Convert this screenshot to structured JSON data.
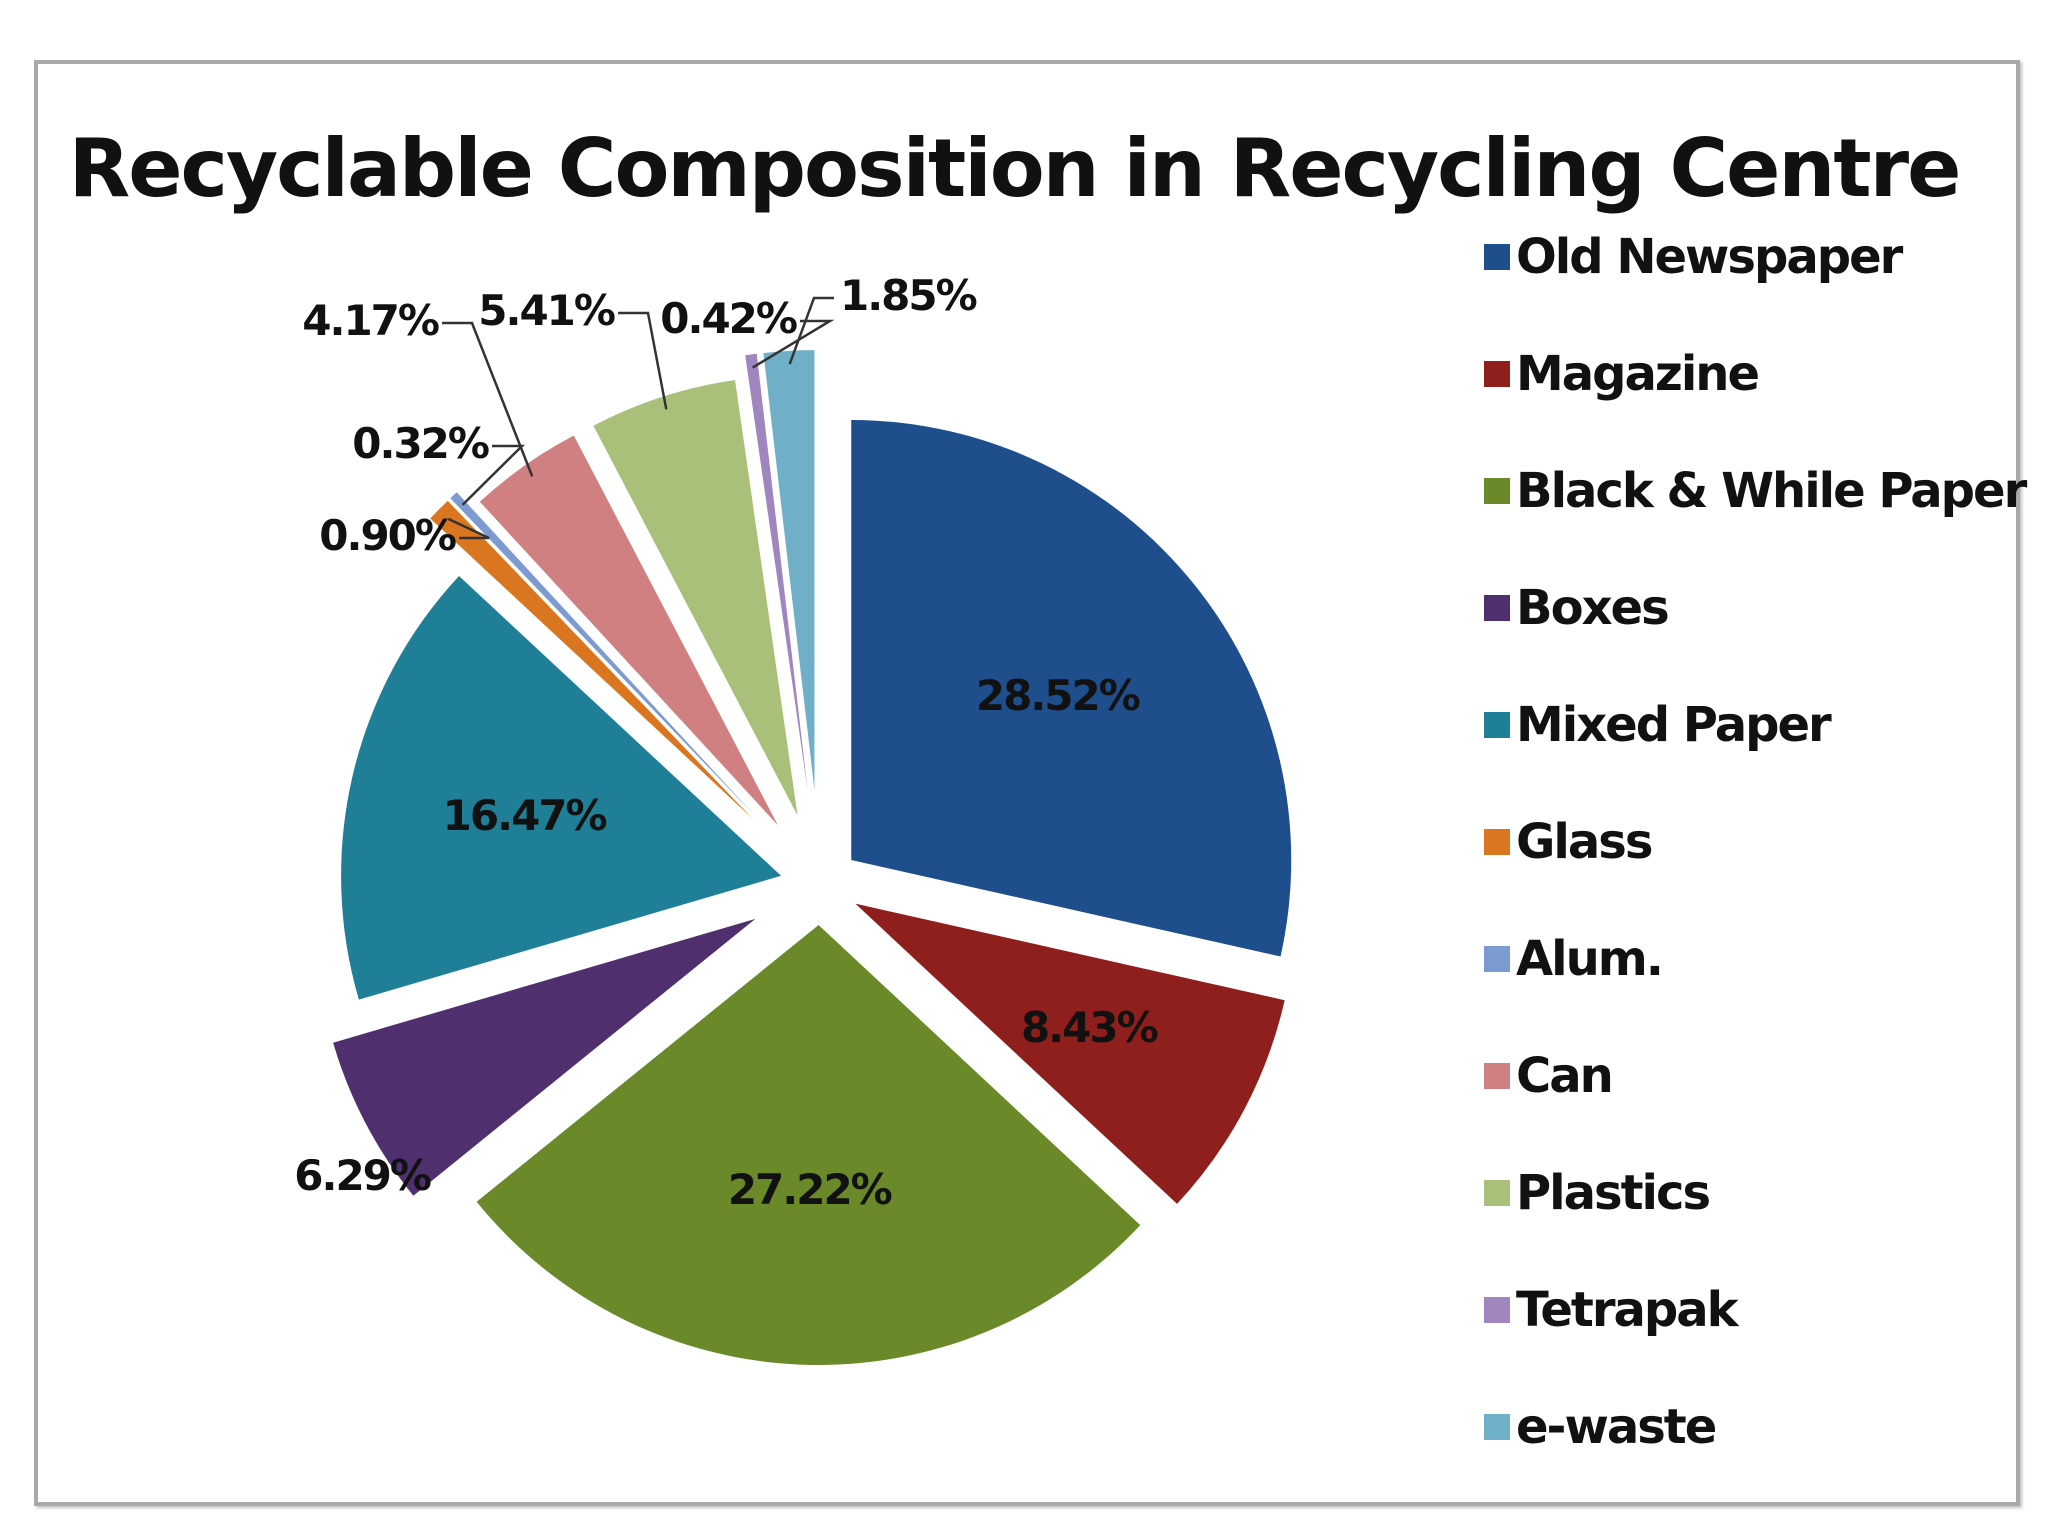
{
  "chart_data": {
    "type": "pie",
    "title": "Recyclable Composition in Recycling Centre",
    "legend_position": "right",
    "exploded": true,
    "categories": [
      "Old Newspaper",
      "Magazine",
      "Black & While Paper",
      "Boxes",
      "Mixed Paper",
      "Glass",
      "Alum.",
      "Can",
      "Plastics",
      "Tetrapak",
      "e-waste"
    ],
    "values": [
      28.52,
      8.43,
      27.22,
      6.29,
      16.47,
      0.9,
      0.32,
      4.17,
      5.41,
      0.42,
      1.85
    ],
    "data_labels": [
      "28.52%",
      "8.43%",
      "27.22%",
      "6.29%",
      "16.47%",
      "0.90%",
      "0.32%",
      "4.17%",
      "5.41%",
      "0.42%",
      "1.85%"
    ],
    "colors": [
      "#1F4E8C",
      "#8E1F1C",
      "#6A8A2A",
      "#4F2F6E",
      "#1F7F96",
      "#D9761F",
      "#7E9BD1",
      "#D08080",
      "#A8C07A",
      "#9F86BE",
      "#6FB0C8"
    ]
  }
}
